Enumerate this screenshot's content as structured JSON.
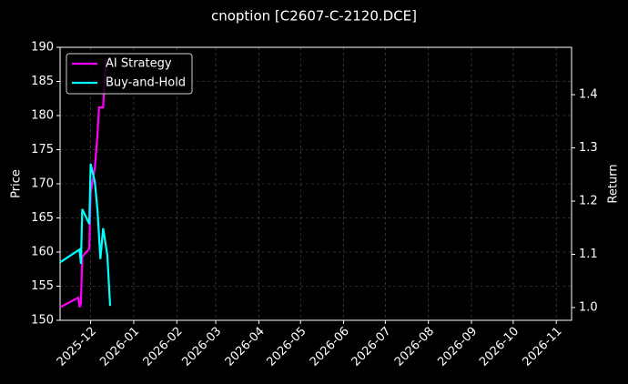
{
  "chart_data": {
    "type": "line",
    "title": "cnoption [C2607-C-2120.DCE]",
    "ylabel": "Price",
    "y2label": "Return",
    "xlim": [
      "2025-11-09",
      "2026-11-12"
    ],
    "xticks": [
      {
        "value": "2025-12-01",
        "label": "2025-12"
      },
      {
        "value": "2026-01-01",
        "label": "2026-01"
      },
      {
        "value": "2026-02-01",
        "label": "2026-02"
      },
      {
        "value": "2026-03-01",
        "label": "2026-03"
      },
      {
        "value": "2026-04-01",
        "label": "2026-04"
      },
      {
        "value": "2026-05-01",
        "label": "2026-05"
      },
      {
        "value": "2026-06-01",
        "label": "2026-06"
      },
      {
        "value": "2026-07-01",
        "label": "2026-07"
      },
      {
        "value": "2026-08-01",
        "label": "2026-08"
      },
      {
        "value": "2026-09-01",
        "label": "2026-09"
      },
      {
        "value": "2026-10-01",
        "label": "2026-10"
      },
      {
        "value": "2026-11-01",
        "label": "2026-11"
      }
    ],
    "ylim": [
      150,
      190
    ],
    "yticks": [
      150,
      155,
      160,
      165,
      170,
      175,
      180,
      185,
      190
    ],
    "y2lim": [
      0.976,
      1.489
    ],
    "y2ticks": [
      {
        "value": 1.0,
        "label": "1.0"
      },
      {
        "value": 1.1,
        "label": "1.1"
      },
      {
        "value": 1.2,
        "label": "1.2"
      },
      {
        "value": 1.3,
        "label": "1.3"
      },
      {
        "value": 1.4,
        "label": "1.4"
      }
    ],
    "grid": true,
    "legend": "upper-left",
    "series": [
      {
        "name": "AI Strategy",
        "color": "#ff00ff",
        "axis": "y",
        "x": [
          "2025-11-09",
          "2025-11-22",
          "2025-11-23",
          "2025-11-24",
          "2025-11-25",
          "2025-11-30",
          "2025-12-01",
          "2025-12-04",
          "2025-12-06",
          "2025-12-07",
          "2025-12-10",
          "2025-12-12"
        ],
        "values": [
          151.9,
          153.3,
          151.9,
          152.5,
          159.3,
          160.5,
          168.7,
          172.3,
          177.3,
          181.2,
          181.2,
          188.3
        ]
      },
      {
        "name": "Buy-and-Hold",
        "color": "#00ffff",
        "axis": "y2",
        "x": [
          "2025-11-09",
          "2025-11-23",
          "2025-11-24",
          "2025-11-25",
          "2025-11-30",
          "2025-12-01",
          "2025-12-04",
          "2025-12-06",
          "2025-12-08",
          "2025-12-10",
          "2025-12-13",
          "2025-12-15"
        ],
        "values": [
          1.085,
          1.109,
          1.082,
          1.185,
          1.157,
          1.27,
          1.236,
          1.181,
          1.091,
          1.149,
          1.099,
          1.003
        ]
      }
    ]
  }
}
